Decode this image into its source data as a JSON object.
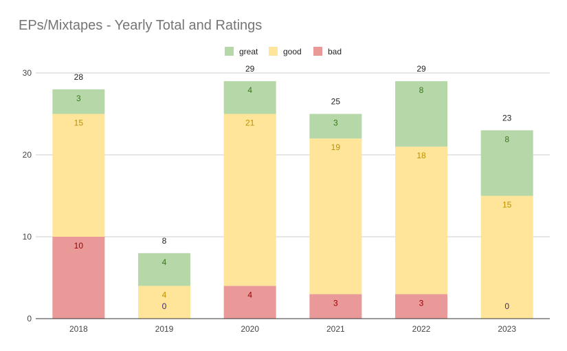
{
  "chart_data": {
    "type": "bar",
    "stacked": true,
    "title": "EPs/Mixtapes - Yearly Total and Ratings",
    "xlabel": "",
    "ylabel": "",
    "categories": [
      "2018",
      "2019",
      "2020",
      "2021",
      "2022",
      "2023"
    ],
    "ylim": [
      0,
      30
    ],
    "yticks": [
      0,
      10,
      20,
      30
    ],
    "grid": true,
    "legend_position": "top",
    "series": [
      {
        "name": "bad",
        "values": [
          10,
          0,
          4,
          3,
          3,
          0
        ],
        "color": "#ea9999",
        "label_color": "#990000"
      },
      {
        "name": "good",
        "values": [
          15,
          4,
          21,
          19,
          18,
          15
        ],
        "color": "#ffe599",
        "label_color": "#bf9000"
      },
      {
        "name": "great",
        "values": [
          3,
          4,
          4,
          3,
          8,
          8
        ],
        "color": "#b6d7a8",
        "label_color": "#38761d"
      }
    ],
    "totals": [
      28,
      8,
      29,
      25,
      29,
      23
    ],
    "legend_order": [
      "great",
      "good",
      "bad"
    ]
  }
}
